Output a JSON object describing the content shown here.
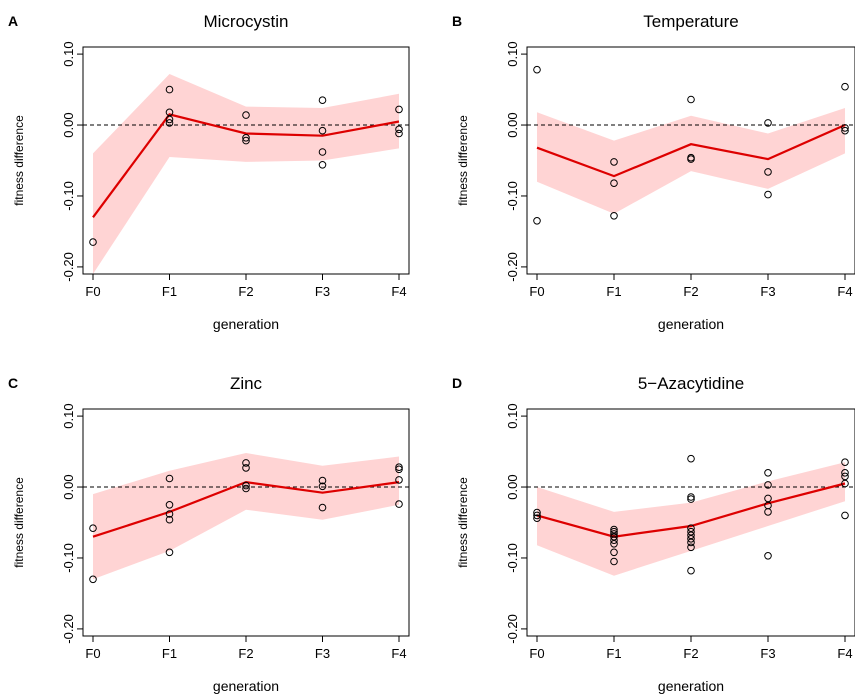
{
  "chart_data": [
    {
      "panel": "A",
      "type": "line",
      "title": "Microcystin",
      "xlabel": "generation",
      "ylabel": "fitness difference",
      "categories": [
        "F0",
        "F1",
        "F2",
        "F3",
        "F4"
      ],
      "yticks": [
        "-0.20",
        "-0.10",
        "0.00",
        "0.10"
      ],
      "ylim": [
        -0.21,
        0.11
      ],
      "reference_line": 0,
      "mean": [
        -0.13,
        0.015,
        -0.012,
        -0.015,
        0.005
      ],
      "band_upper": [
        -0.04,
        0.072,
        0.026,
        0.024,
        0.044
      ],
      "band_lower": [
        -0.21,
        -0.045,
        -0.052,
        -0.05,
        -0.033
      ],
      "points": [
        [
          0,
          -0.165
        ],
        [
          1,
          0.05
        ],
        [
          1,
          0.018
        ],
        [
          1,
          0.008
        ],
        [
          1,
          0.003
        ],
        [
          2,
          0.014
        ],
        [
          2,
          -0.018
        ],
        [
          2,
          -0.022
        ],
        [
          3,
          0.035
        ],
        [
          3,
          -0.008
        ],
        [
          3,
          -0.038
        ],
        [
          3,
          -0.056
        ],
        [
          4,
          0.022
        ],
        [
          4,
          -0.006
        ],
        [
          4,
          -0.012
        ]
      ]
    },
    {
      "panel": "B",
      "type": "line",
      "title": "Temperature",
      "xlabel": "generation",
      "ylabel": "fitness difference",
      "categories": [
        "F0",
        "F1",
        "F2",
        "F3",
        "F4"
      ],
      "yticks": [
        "-0.20",
        "-0.10",
        "0.00",
        "0.10"
      ],
      "ylim": [
        -0.21,
        0.11
      ],
      "reference_line": 0,
      "mean": [
        -0.032,
        -0.072,
        -0.027,
        -0.048,
        0.0
      ],
      "band_upper": [
        0.018,
        -0.022,
        0.013,
        -0.012,
        0.024
      ],
      "band_lower": [
        -0.08,
        -0.125,
        -0.065,
        -0.09,
        -0.04
      ],
      "points": [
        [
          0,
          0.078
        ],
        [
          0,
          -0.135
        ],
        [
          1,
          -0.052
        ],
        [
          1,
          -0.082
        ],
        [
          1,
          -0.128
        ],
        [
          2,
          0.036
        ],
        [
          2,
          -0.046
        ],
        [
          2,
          -0.048
        ],
        [
          3,
          0.003
        ],
        [
          3,
          -0.066
        ],
        [
          3,
          -0.098
        ],
        [
          4,
          0.054
        ],
        [
          4,
          -0.004
        ],
        [
          4,
          -0.008
        ]
      ]
    },
    {
      "panel": "C",
      "type": "line",
      "title": "Zinc",
      "xlabel": "generation",
      "ylabel": "fitness difference",
      "categories": [
        "F0",
        "F1",
        "F2",
        "F3",
        "F4"
      ],
      "yticks": [
        "-0.20",
        "-0.10",
        "0.00",
        "0.10"
      ],
      "ylim": [
        -0.21,
        0.11
      ],
      "reference_line": 0,
      "mean": [
        -0.07,
        -0.035,
        0.007,
        -0.008,
        0.007
      ],
      "band_upper": [
        -0.01,
        0.023,
        0.048,
        0.03,
        0.043
      ],
      "band_lower": [
        -0.13,
        -0.09,
        -0.032,
        -0.046,
        -0.025
      ],
      "points": [
        [
          0,
          -0.058
        ],
        [
          0,
          -0.13
        ],
        [
          1,
          0.012
        ],
        [
          1,
          -0.025
        ],
        [
          1,
          -0.038
        ],
        [
          1,
          -0.046
        ],
        [
          1,
          -0.092
        ],
        [
          2,
          0.034
        ],
        [
          2,
          0.027
        ],
        [
          2,
          0.002
        ],
        [
          2,
          -0.002
        ],
        [
          3,
          0.009
        ],
        [
          3,
          0.001
        ],
        [
          3,
          -0.029
        ],
        [
          4,
          0.028
        ],
        [
          4,
          0.025
        ],
        [
          4,
          0.01
        ],
        [
          4,
          -0.024
        ]
      ]
    },
    {
      "panel": "D",
      "type": "line",
      "title": "5−Azacytidine",
      "xlabel": "generation",
      "ylabel": "fitness difference",
      "categories": [
        "F0",
        "F1",
        "F2",
        "F3",
        "F4"
      ],
      "yticks": [
        "-0.20",
        "-0.10",
        "0.00",
        "0.10"
      ],
      "ylim": [
        -0.21,
        0.11
      ],
      "reference_line": 0,
      "mean": [
        -0.04,
        -0.07,
        -0.055,
        -0.023,
        0.005
      ],
      "band_upper": [
        0.0,
        -0.035,
        -0.022,
        0.008,
        0.035
      ],
      "band_lower": [
        -0.082,
        -0.125,
        -0.09,
        -0.055,
        -0.02
      ],
      "points": [
        [
          0,
          -0.036
        ],
        [
          0,
          -0.04
        ],
        [
          0,
          -0.044
        ],
        [
          1,
          -0.06
        ],
        [
          1,
          -0.063
        ],
        [
          1,
          -0.066
        ],
        [
          1,
          -0.07
        ],
        [
          1,
          -0.075
        ],
        [
          1,
          -0.08
        ],
        [
          1,
          -0.092
        ],
        [
          1,
          -0.105
        ],
        [
          2,
          0.04
        ],
        [
          2,
          -0.014
        ],
        [
          2,
          -0.017
        ],
        [
          2,
          -0.058
        ],
        [
          2,
          -0.063
        ],
        [
          2,
          -0.068
        ],
        [
          2,
          -0.073
        ],
        [
          2,
          -0.078
        ],
        [
          2,
          -0.085
        ],
        [
          2,
          -0.118
        ],
        [
          3,
          0.02
        ],
        [
          3,
          0.003
        ],
        [
          3,
          -0.016
        ],
        [
          3,
          -0.026
        ],
        [
          3,
          -0.035
        ],
        [
          3,
          -0.097
        ],
        [
          4,
          0.035
        ],
        [
          4,
          0.02
        ],
        [
          4,
          0.015
        ],
        [
          4,
          0.005
        ],
        [
          4,
          -0.04
        ]
      ]
    }
  ]
}
